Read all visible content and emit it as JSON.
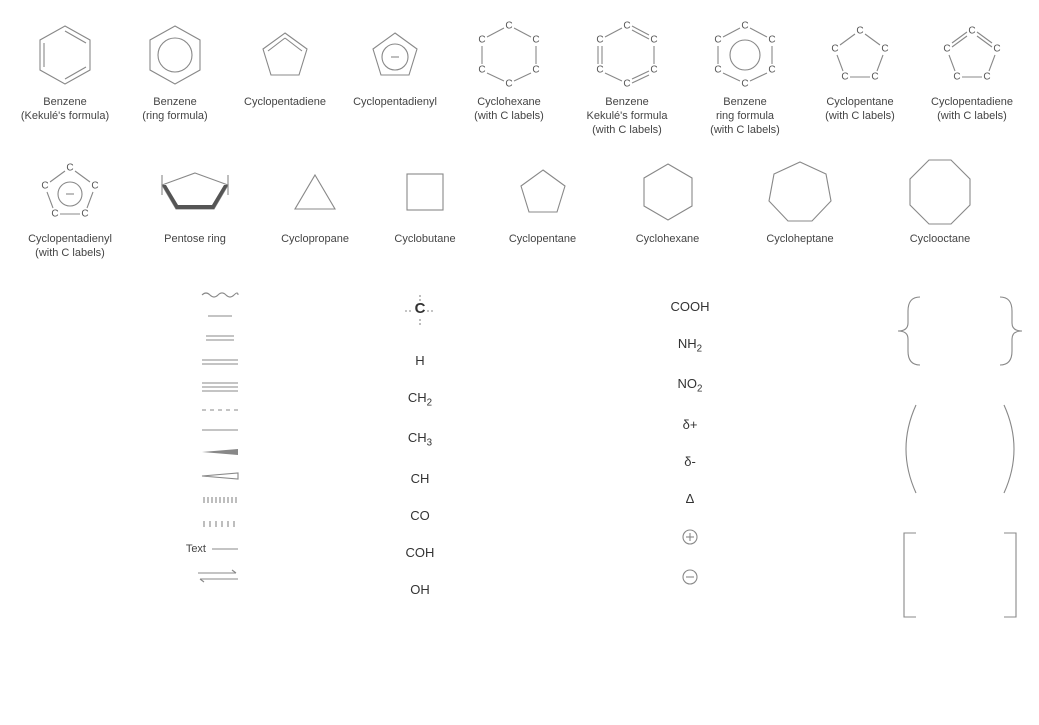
{
  "colors": {
    "stroke": "#888888",
    "text": "#444444",
    "background": "#ffffff"
  },
  "row1": [
    {
      "label": "Benzene\n(Kekulé's formula)"
    },
    {
      "label": "Benzene\n(ring formula)"
    },
    {
      "label": "Cyclopentadiene"
    },
    {
      "label": "Cyclopentadienyl"
    },
    {
      "label": "Cyclohexane\n(with C labels)"
    },
    {
      "label": "Benzene\nKekulé's formula\n(with C labels)"
    },
    {
      "label": "Benzene\nring formula\n(with C labels)"
    },
    {
      "label": "Cyclopentane\n(with C labels)"
    },
    {
      "label": "Cyclopentadiene\n(with C labels)"
    }
  ],
  "row2": [
    {
      "label": "Cyclopentadienyl\n(with C labels)"
    },
    {
      "label": "Pentose ring"
    },
    {
      "label": "Cyclopropane"
    },
    {
      "label": "Cyclobutane"
    },
    {
      "label": "Cyclopentane"
    },
    {
      "label": "Cyclohexane"
    },
    {
      "label": "Cycloheptane"
    },
    {
      "label": "Cyclooctane"
    }
  ],
  "bonds": [
    "wavy",
    "short",
    "double-short",
    "double",
    "triple",
    "dashed",
    "solid",
    "wedge-solid",
    "wedge-hollow",
    "hashmarks-dense",
    "hashmarks-sparse",
    "Text",
    "equilibrium"
  ],
  "groups_col1": [
    "C-center",
    "H",
    "CH2",
    "CH3",
    "CH",
    "CO",
    "COH",
    "OH"
  ],
  "groups_col2": [
    "COOH",
    "NH2",
    "NO2",
    "δ+",
    "δ-",
    "Δ",
    "circ-plus",
    "circ-minus"
  ],
  "brackets": [
    "curly",
    "paren",
    "square"
  ]
}
